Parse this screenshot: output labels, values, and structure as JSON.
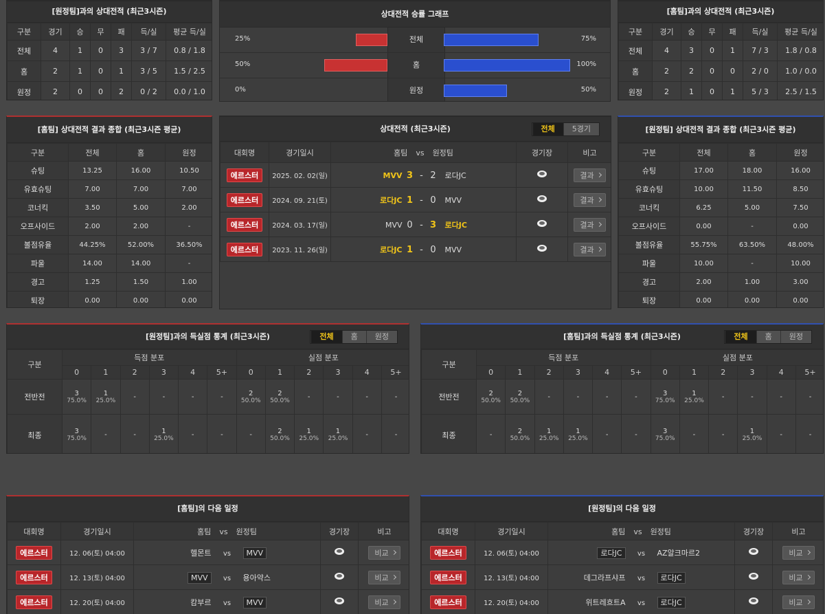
{
  "h2h_away": {
    "title": "[원정팀]과의 상대전적 (최근3시즌)",
    "headers": [
      "구분",
      "경기",
      "승",
      "무",
      "패",
      "득/실",
      "평균 득/실"
    ],
    "rows": [
      [
        "전체",
        "4",
        "1",
        "0",
        "3",
        "3 / 7",
        "0.8 / 1.8"
      ],
      [
        "홈",
        "2",
        "1",
        "0",
        "1",
        "3 / 5",
        "1.5 / 2.5"
      ],
      [
        "원정",
        "2",
        "0",
        "0",
        "2",
        "0 / 2",
        "0.0 / 1.0"
      ]
    ]
  },
  "winrate": {
    "title": "상대전적 승률 그래프",
    "left_color": "#c83232",
    "right_color": "#2a4fcf",
    "rows": [
      {
        "label": "전체",
        "left": {
          "value": 25,
          "label": "25%"
        },
        "right": {
          "value": 75,
          "label": "75%"
        }
      },
      {
        "label": "홈",
        "left": {
          "value": 50,
          "label": "50%"
        },
        "right": {
          "value": 100,
          "label": "100%"
        }
      },
      {
        "label": "원정",
        "left": {
          "value": 0,
          "label": "0%"
        },
        "right": {
          "value": 50,
          "label": "50%"
        }
      }
    ]
  },
  "h2h_home": {
    "title": "[홈팀]과의 상대전적 (최근3시즌)",
    "headers": [
      "구분",
      "경기",
      "승",
      "무",
      "패",
      "득/실",
      "평균 득/실"
    ],
    "rows": [
      [
        "전체",
        "4",
        "3",
        "0",
        "1",
        "7 / 3",
        "1.8 / 0.8"
      ],
      [
        "홈",
        "2",
        "2",
        "0",
        "0",
        "2 / 0",
        "1.0 / 0.0"
      ],
      [
        "원정",
        "2",
        "1",
        "0",
        "1",
        "5 / 3",
        "2.5 / 1.5"
      ]
    ]
  },
  "home_summary": {
    "title": "[홈팀] 상대전적 결과 종합 (최근3시즌 평균)",
    "headers": [
      "구분",
      "전체",
      "홈",
      "원정"
    ],
    "rows": [
      [
        "슈팅",
        "13.25",
        "16.00",
        "10.50"
      ],
      [
        "유효슈팅",
        "7.00",
        "7.00",
        "7.00"
      ],
      [
        "코너킥",
        "3.50",
        "5.00",
        "2.00"
      ],
      [
        "오프사이드",
        "2.00",
        "2.00",
        "-"
      ],
      [
        "볼점유율",
        "44.25%",
        "52.00%",
        "36.50%"
      ],
      [
        "파울",
        "14.00",
        "14.00",
        "-"
      ],
      [
        "경고",
        "1.25",
        "1.50",
        "1.00"
      ],
      [
        "퇴장",
        "0.00",
        "0.00",
        "0.00"
      ]
    ]
  },
  "h2h_matches": {
    "title": "상대전적 (최근3시즌)",
    "tabs": [
      "전체",
      "5경기"
    ],
    "active_tab": 0,
    "headers": [
      "대회명",
      "경기일시",
      "홈팀",
      "vs",
      "원정팀",
      "경기장",
      "비고"
    ],
    "rows": [
      {
        "league": "에르스터",
        "date": "2025. 02. 02(일)",
        "home": "MVV",
        "home_score": "3",
        "separator": "-",
        "away_score": "2",
        "away": "로다JC",
        "button": "결과",
        "winner": "home"
      },
      {
        "league": "에르스터",
        "date": "2024. 09. 21(토)",
        "home": "로다JC",
        "home_score": "1",
        "separator": "-",
        "away_score": "0",
        "away": "MVV",
        "button": "결과",
        "winner": "home"
      },
      {
        "league": "에르스터",
        "date": "2024. 03. 17(일)",
        "home": "MVV",
        "home_score": "0",
        "separator": "-",
        "away_score": "3",
        "away": "로다JC",
        "button": "결과",
        "winner": "away"
      },
      {
        "league": "에르스터",
        "date": "2023. 11. 26(일)",
        "home": "로다JC",
        "home_score": "1",
        "separator": "-",
        "away_score": "0",
        "away": "MVV",
        "button": "결과",
        "winner": "home"
      }
    ]
  },
  "away_summary": {
    "title": "[원정팀] 상대전적 결과 종합 (최근3시즌 평균)",
    "headers": [
      "구분",
      "전체",
      "홈",
      "원정"
    ],
    "rows": [
      [
        "슈팅",
        "17.00",
        "18.00",
        "16.00"
      ],
      [
        "유효슈팅",
        "10.00",
        "11.50",
        "8.50"
      ],
      [
        "코너킥",
        "6.25",
        "5.00",
        "7.50"
      ],
      [
        "오프사이드",
        "0.00",
        "-",
        "0.00"
      ],
      [
        "볼점유율",
        "55.75%",
        "63.50%",
        "48.00%"
      ],
      [
        "파울",
        "10.00",
        "-",
        "10.00"
      ],
      [
        "경고",
        "2.00",
        "1.00",
        "3.00"
      ],
      [
        "퇴장",
        "0.00",
        "0.00",
        "0.00"
      ]
    ]
  },
  "goal_stats_away": {
    "title": "[원정팀]과의 득실점 통계 (최근3시즌)",
    "tabs": [
      "전체",
      "홈",
      "원정"
    ],
    "active_tab": 0,
    "label": "구분",
    "scored_title": "득점 분포",
    "conceded_title": "실점 분포",
    "scored_columns": [
      "0",
      "1",
      "2",
      "3",
      "4",
      "5+"
    ],
    "conceded_columns": [
      "0",
      "1",
      "2",
      "3",
      "4",
      "5+"
    ],
    "rows": [
      {
        "label": "전반전",
        "scored": [
          [
            "3",
            "75.0%"
          ],
          [
            "1",
            "25.0%"
          ],
          [
            "-"
          ],
          [
            "-"
          ],
          [
            "-"
          ],
          [
            "-"
          ]
        ],
        "conceded": [
          [
            "2",
            "50.0%"
          ],
          [
            "2",
            "50.0%"
          ],
          [
            "-"
          ],
          [
            "-"
          ],
          [
            "-"
          ],
          [
            "-"
          ]
        ]
      },
      {
        "label": "최종",
        "scored": [
          [
            "3",
            "75.0%"
          ],
          [
            "-"
          ],
          [
            "-"
          ],
          [
            "1",
            "25.0%"
          ],
          [
            "-"
          ],
          [
            "-"
          ]
        ],
        "conceded": [
          [
            "-"
          ],
          [
            "2",
            "50.0%"
          ],
          [
            "1",
            "25.0%"
          ],
          [
            "1",
            "25.0%"
          ],
          [
            "-"
          ],
          [
            "-"
          ]
        ]
      }
    ]
  },
  "goal_stats_home": {
    "title": "[홈팀]과의 득실점 통계 (최근3시즌)",
    "tabs": [
      "전체",
      "홈",
      "원정"
    ],
    "active_tab": 0,
    "label": "구분",
    "scored_title": "득점 분포",
    "conceded_title": "실점 분포",
    "scored_columns": [
      "0",
      "1",
      "2",
      "3",
      "4",
      "5+"
    ],
    "conceded_columns": [
      "0",
      "1",
      "2",
      "3",
      "4",
      "5+"
    ],
    "rows": [
      {
        "label": "전반전",
        "scored": [
          [
            "2",
            "50.0%"
          ],
          [
            "2",
            "50.0%"
          ],
          [
            "-"
          ],
          [
            "-"
          ],
          [
            "-"
          ],
          [
            "-"
          ]
        ],
        "conceded": [
          [
            "3",
            "75.0%"
          ],
          [
            "1",
            "25.0%"
          ],
          [
            "-"
          ],
          [
            "-"
          ],
          [
            "-"
          ],
          [
            "-"
          ]
        ]
      },
      {
        "label": "최종",
        "scored": [
          [
            "-"
          ],
          [
            "2",
            "50.0%"
          ],
          [
            "1",
            "25.0%"
          ],
          [
            "1",
            "25.0%"
          ],
          [
            "-"
          ],
          [
            "-"
          ]
        ],
        "conceded": [
          [
            "3",
            "75.0%"
          ],
          [
            "-"
          ],
          [
            "-"
          ],
          [
            "1",
            "25.0%"
          ],
          [
            "-"
          ],
          [
            "-"
          ]
        ]
      }
    ]
  },
  "next_home": {
    "title": "[홈팀]의 다음 일정",
    "headers": [
      "대회명",
      "경기일시",
      "홈팀",
      "vs",
      "원정팀",
      "경기장",
      "비고"
    ],
    "rows": [
      {
        "league": "에르스터",
        "date": "12. 06(토) 04:00",
        "home": "헬몬트",
        "vs": "vs",
        "away": "MVV",
        "button": "비교",
        "team_side": "away"
      },
      {
        "league": "에르스터",
        "date": "12. 13(토) 04:00",
        "home": "MVV",
        "vs": "vs",
        "away": "용아약스",
        "button": "비교",
        "team_side": "home"
      },
      {
        "league": "에르스터",
        "date": "12. 20(토) 04:00",
        "home": "캄부르",
        "vs": "vs",
        "away": "MVV",
        "button": "비교",
        "team_side": "away"
      }
    ]
  },
  "next_away": {
    "title": "[원정팀]의 다음 일정",
    "headers": [
      "대회명",
      "경기일시",
      "홈팀",
      "vs",
      "원정팀",
      "경기장",
      "비고"
    ],
    "rows": [
      {
        "league": "에르스터",
        "date": "12. 06(토) 04:00",
        "home": "로다JC",
        "vs": "vs",
        "away": "AZ알크마르2",
        "button": "비교",
        "team_side": "home"
      },
      {
        "league": "에르스터",
        "date": "12. 13(토) 04:00",
        "home": "데그라프샤프",
        "vs": "vs",
        "away": "로다JC",
        "button": "비교",
        "team_side": "away"
      },
      {
        "league": "에르스터",
        "date": "12. 20(토) 04:00",
        "home": "위트레흐트A",
        "vs": "vs",
        "away": "로다JC",
        "button": "비교",
        "team_side": "away"
      }
    ]
  }
}
